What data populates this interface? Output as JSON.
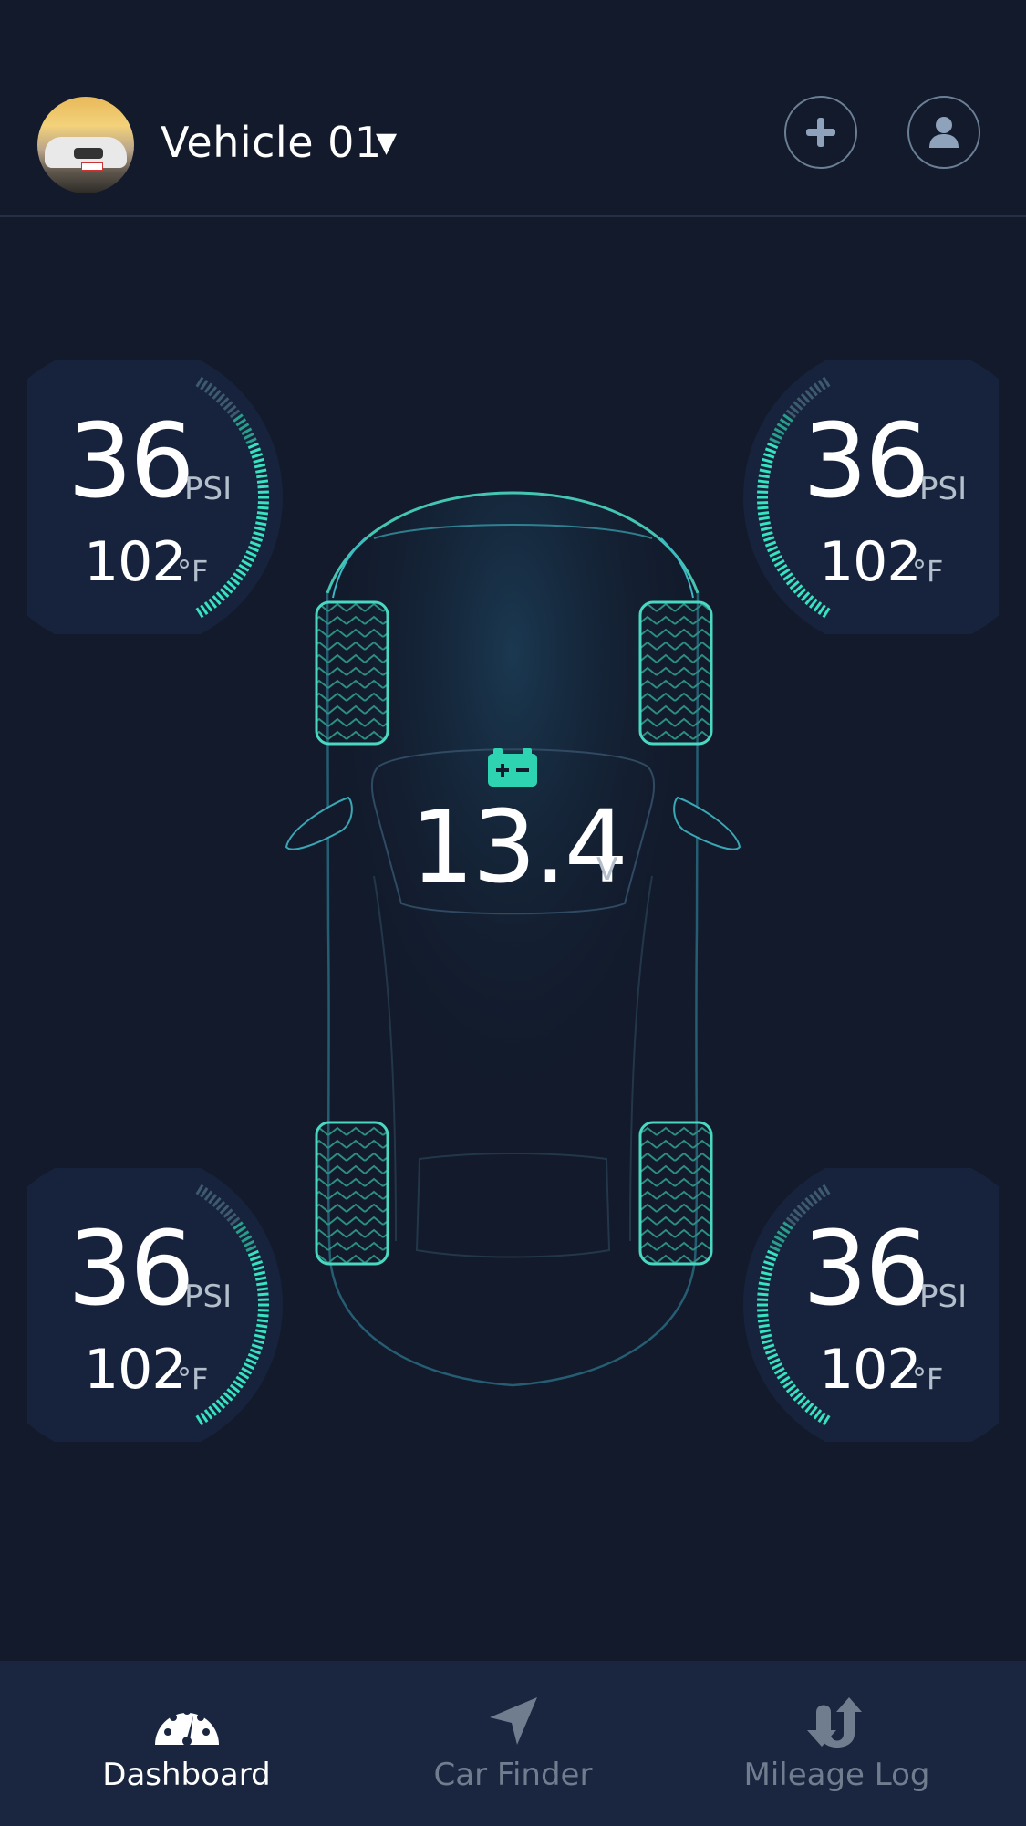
{
  "header": {
    "vehicle_name": "Vehicle 01",
    "dropdown_icon": "caret-down-icon",
    "add_icon": "plus-icon",
    "profile_icon": "user-icon"
  },
  "tires": {
    "front_left": {
      "pressure": "36",
      "pressure_unit": "PSI",
      "temperature": "102",
      "temperature_unit": "°F"
    },
    "front_right": {
      "pressure": "36",
      "pressure_unit": "PSI",
      "temperature": "102",
      "temperature_unit": "°F"
    },
    "rear_left": {
      "pressure": "36",
      "pressure_unit": "PSI",
      "temperature": "102",
      "temperature_unit": "°F"
    },
    "rear_right": {
      "pressure": "36",
      "pressure_unit": "PSI",
      "temperature": "102",
      "temperature_unit": "°F"
    }
  },
  "battery": {
    "icon": "battery-icon",
    "voltage": "13.4",
    "unit": "V"
  },
  "tabs": [
    {
      "label": "Dashboard",
      "icon": "speedometer-icon",
      "active": true
    },
    {
      "label": "Car Finder",
      "icon": "navigation-arrow-icon",
      "active": false
    },
    {
      "label": "Mileage Log",
      "icon": "route-arrows-icon",
      "active": false
    }
  ],
  "colors": {
    "background": "#121a2b",
    "accent": "#2ed3b2",
    "tab_bar": "#1a2640",
    "inactive_text": "#6f7d8e"
  }
}
